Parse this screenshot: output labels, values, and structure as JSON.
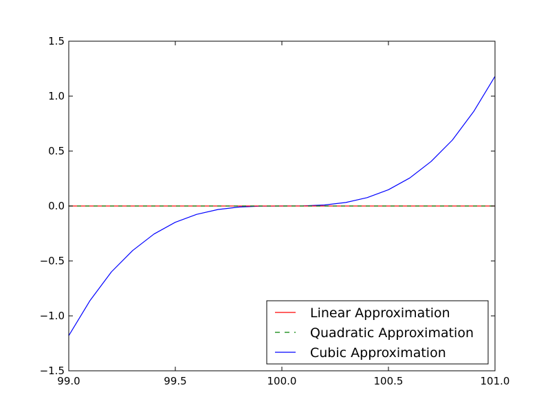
{
  "chart_data": {
    "type": "line",
    "title": "",
    "xlabel": "",
    "ylabel": "",
    "xlim": [
      99.0,
      101.0
    ],
    "ylim": [
      -1.5,
      1.5
    ],
    "xticks": [
      99.0,
      99.5,
      100.0,
      100.5,
      101.0
    ],
    "xtick_labels": [
      "99.0",
      "99.5",
      "100.0",
      "100.5",
      "101.0"
    ],
    "yticks": [
      -1.5,
      -1.0,
      -0.5,
      0.0,
      0.5,
      1.0,
      1.5
    ],
    "ytick_labels": [
      "−1.5",
      "−1.0",
      "−0.5",
      "0.0",
      "0.5",
      "1.0",
      "1.5"
    ],
    "grid": false,
    "legend_position": "lower-right",
    "series": [
      {
        "name": "Linear Approximation",
        "color": "#ff0000",
        "style": "solid",
        "x": [
          99.0,
          99.5,
          100.0,
          100.5,
          101.0
        ],
        "y": [
          0.0,
          0.0,
          0.0,
          0.0,
          0.0
        ]
      },
      {
        "name": "Quadratic Approximation",
        "color": "#008000",
        "style": "dashed",
        "x": [
          99.0,
          99.5,
          100.0,
          100.5,
          101.0
        ],
        "y": [
          0.0,
          0.0,
          0.0,
          0.0,
          0.0
        ]
      },
      {
        "name": "Cubic Approximation",
        "color": "#0000ff",
        "style": "solid",
        "x": [
          99.0,
          99.1,
          99.2,
          99.3,
          99.4,
          99.5,
          99.6,
          99.7,
          99.8,
          99.9,
          100.0,
          100.1,
          100.2,
          100.3,
          100.4,
          100.5,
          100.6,
          100.7,
          100.8,
          100.9,
          101.0
        ],
        "y": [
          -1.18,
          -0.86,
          -0.6,
          -0.405,
          -0.255,
          -0.148,
          -0.076,
          -0.032,
          -0.0095,
          -0.0012,
          0.0,
          0.0012,
          0.0095,
          0.032,
          0.076,
          0.148,
          0.255,
          0.405,
          0.6,
          0.86,
          1.18
        ]
      }
    ]
  }
}
